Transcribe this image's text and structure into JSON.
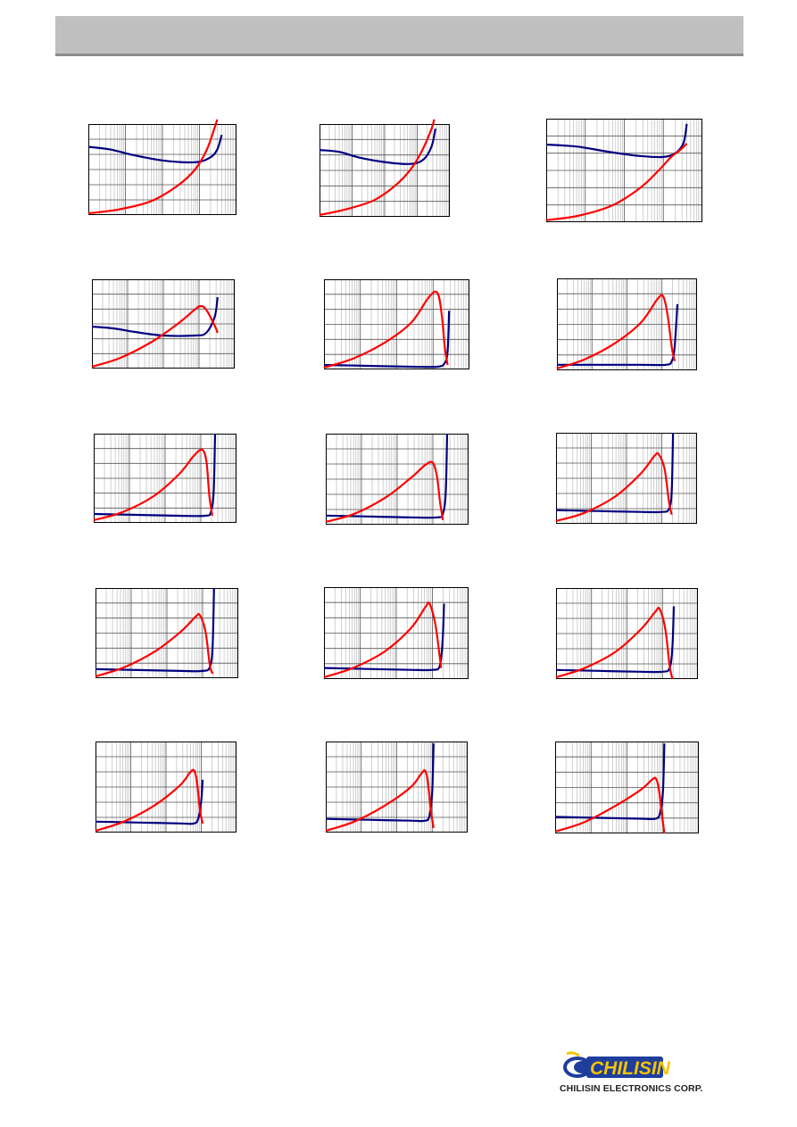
{
  "colors": {
    "header": "#c0c0c0",
    "impedance_curve": "#000080",
    "q_curve": "#ff0000",
    "frame": "#000000",
    "grid_major": "#555555",
    "grid_minor": "#b0b0b0"
  },
  "charts": [
    {
      "id": "r1c1",
      "blue": [
        [
          0,
          0.75
        ],
        [
          0.15,
          0.72
        ],
        [
          0.3,
          0.66
        ],
        [
          0.5,
          0.6
        ],
        [
          0.72,
          0.58
        ],
        [
          0.82,
          0.63
        ],
        [
          0.87,
          0.72
        ],
        [
          0.9,
          0.88
        ]
      ],
      "red": [
        [
          0,
          0.02
        ],
        [
          0.2,
          0.06
        ],
        [
          0.42,
          0.15
        ],
        [
          0.6,
          0.32
        ],
        [
          0.72,
          0.5
        ],
        [
          0.8,
          0.72
        ],
        [
          0.85,
          0.95
        ],
        [
          0.87,
          1.05
        ]
      ]
    },
    {
      "id": "r1c2",
      "blue": [
        [
          0,
          0.72
        ],
        [
          0.15,
          0.7
        ],
        [
          0.3,
          0.64
        ],
        [
          0.5,
          0.59
        ],
        [
          0.7,
          0.57
        ],
        [
          0.8,
          0.62
        ],
        [
          0.86,
          0.76
        ],
        [
          0.89,
          0.95
        ]
      ],
      "red": [
        [
          0,
          0.02
        ],
        [
          0.2,
          0.08
        ],
        [
          0.42,
          0.18
        ],
        [
          0.6,
          0.36
        ],
        [
          0.72,
          0.55
        ],
        [
          0.8,
          0.75
        ],
        [
          0.86,
          0.95
        ],
        [
          0.88,
          1.05
        ]
      ]
    },
    {
      "id": "r1c3",
      "blue": [
        [
          0,
          0.75
        ],
        [
          0.2,
          0.73
        ],
        [
          0.4,
          0.68
        ],
        [
          0.6,
          0.64
        ],
        [
          0.75,
          0.63
        ],
        [
          0.83,
          0.67
        ],
        [
          0.88,
          0.77
        ],
        [
          0.9,
          0.95
        ]
      ],
      "red": [
        [
          0,
          0.02
        ],
        [
          0.2,
          0.06
        ],
        [
          0.42,
          0.16
        ],
        [
          0.6,
          0.33
        ],
        [
          0.72,
          0.5
        ],
        [
          0.8,
          0.63
        ],
        [
          0.86,
          0.7
        ],
        [
          0.9,
          0.76
        ]
      ]
    },
    {
      "id": "r2c1",
      "blue": [
        [
          0,
          0.47
        ],
        [
          0.15,
          0.45
        ],
        [
          0.3,
          0.41
        ],
        [
          0.5,
          0.37
        ],
        [
          0.72,
          0.37
        ],
        [
          0.8,
          0.4
        ],
        [
          0.86,
          0.58
        ],
        [
          0.88,
          0.8
        ]
      ],
      "red": [
        [
          0,
          0.02
        ],
        [
          0.2,
          0.12
        ],
        [
          0.42,
          0.3
        ],
        [
          0.6,
          0.5
        ],
        [
          0.72,
          0.66
        ],
        [
          0.76,
          0.7
        ],
        [
          0.8,
          0.66
        ],
        [
          0.86,
          0.48
        ],
        [
          0.88,
          0.4
        ]
      ]
    },
    {
      "id": "r2c2",
      "blue": [
        [
          0,
          0.05
        ],
        [
          0.3,
          0.04
        ],
        [
          0.6,
          0.03
        ],
        [
          0.78,
          0.03
        ],
        [
          0.83,
          0.07
        ],
        [
          0.85,
          0.2
        ],
        [
          0.86,
          0.65
        ]
      ],
      "red": [
        [
          0,
          0.02
        ],
        [
          0.2,
          0.12
        ],
        [
          0.42,
          0.3
        ],
        [
          0.6,
          0.52
        ],
        [
          0.72,
          0.8
        ],
        [
          0.78,
          0.85
        ],
        [
          0.81,
          0.6
        ],
        [
          0.83,
          0.25
        ],
        [
          0.85,
          0.05
        ]
      ]
    },
    {
      "id": "r2c3",
      "blue": [
        [
          0,
          0.06
        ],
        [
          0.3,
          0.06
        ],
        [
          0.6,
          0.06
        ],
        [
          0.78,
          0.06
        ],
        [
          0.82,
          0.1
        ],
        [
          0.84,
          0.25
        ],
        [
          0.86,
          0.72
        ]
      ],
      "red": [
        [
          0,
          0.02
        ],
        [
          0.2,
          0.12
        ],
        [
          0.42,
          0.3
        ],
        [
          0.6,
          0.52
        ],
        [
          0.72,
          0.78
        ],
        [
          0.76,
          0.8
        ],
        [
          0.79,
          0.6
        ],
        [
          0.82,
          0.25
        ],
        [
          0.84,
          0.1
        ]
      ]
    },
    {
      "id": "r3c1",
      "blue": [
        [
          0,
          0.1
        ],
        [
          0.3,
          0.09
        ],
        [
          0.6,
          0.08
        ],
        [
          0.78,
          0.08
        ],
        [
          0.82,
          0.12
        ],
        [
          0.84,
          0.35
        ],
        [
          0.85,
          1.0
        ]
      ],
      "red": [
        [
          0,
          0.03
        ],
        [
          0.2,
          0.12
        ],
        [
          0.42,
          0.3
        ],
        [
          0.6,
          0.55
        ],
        [
          0.7,
          0.75
        ],
        [
          0.76,
          0.82
        ],
        [
          0.79,
          0.68
        ],
        [
          0.81,
          0.3
        ],
        [
          0.83,
          0.08
        ]
      ]
    },
    {
      "id": "r3c2",
      "blue": [
        [
          0,
          0.1
        ],
        [
          0.3,
          0.09
        ],
        [
          0.6,
          0.08
        ],
        [
          0.78,
          0.08
        ],
        [
          0.82,
          0.12
        ],
        [
          0.84,
          0.35
        ],
        [
          0.85,
          1.0
        ]
      ],
      "red": [
        [
          0,
          0.03
        ],
        [
          0.2,
          0.12
        ],
        [
          0.42,
          0.3
        ],
        [
          0.6,
          0.52
        ],
        [
          0.7,
          0.66
        ],
        [
          0.75,
          0.68
        ],
        [
          0.78,
          0.52
        ],
        [
          0.8,
          0.25
        ],
        [
          0.82,
          0.05
        ]
      ]
    },
    {
      "id": "r3c3",
      "blue": [
        [
          0,
          0.15
        ],
        [
          0.3,
          0.14
        ],
        [
          0.6,
          0.13
        ],
        [
          0.75,
          0.13
        ],
        [
          0.8,
          0.16
        ],
        [
          0.82,
          0.35
        ],
        [
          0.83,
          1.0
        ]
      ],
      "red": [
        [
          0,
          0.03
        ],
        [
          0.2,
          0.12
        ],
        [
          0.42,
          0.3
        ],
        [
          0.6,
          0.55
        ],
        [
          0.7,
          0.75
        ],
        [
          0.73,
          0.76
        ],
        [
          0.77,
          0.6
        ],
        [
          0.8,
          0.25
        ],
        [
          0.82,
          0.1
        ]
      ]
    },
    {
      "id": "r4c1",
      "blue": [
        [
          0,
          0.1
        ],
        [
          0.3,
          0.09
        ],
        [
          0.6,
          0.08
        ],
        [
          0.75,
          0.08
        ],
        [
          0.8,
          0.12
        ],
        [
          0.82,
          0.35
        ],
        [
          0.83,
          1.0
        ]
      ],
      "red": [
        [
          0,
          0.02
        ],
        [
          0.2,
          0.12
        ],
        [
          0.42,
          0.3
        ],
        [
          0.6,
          0.52
        ],
        [
          0.7,
          0.68
        ],
        [
          0.73,
          0.7
        ],
        [
          0.77,
          0.52
        ],
        [
          0.8,
          0.15
        ],
        [
          0.82,
          0.05
        ]
      ]
    },
    {
      "id": "r4c2",
      "blue": [
        [
          0,
          0.12
        ],
        [
          0.3,
          0.11
        ],
        [
          0.6,
          0.1
        ],
        [
          0.75,
          0.1
        ],
        [
          0.8,
          0.14
        ],
        [
          0.82,
          0.4
        ],
        [
          0.83,
          0.82
        ]
      ],
      "red": [
        [
          0,
          0.02
        ],
        [
          0.2,
          0.12
        ],
        [
          0.42,
          0.3
        ],
        [
          0.6,
          0.55
        ],
        [
          0.7,
          0.78
        ],
        [
          0.73,
          0.82
        ],
        [
          0.77,
          0.6
        ],
        [
          0.8,
          0.25
        ],
        [
          0.81,
          0.12
        ]
      ]
    },
    {
      "id": "r4c3",
      "blue": [
        [
          0,
          0.1
        ],
        [
          0.3,
          0.09
        ],
        [
          0.6,
          0.08
        ],
        [
          0.75,
          0.08
        ],
        [
          0.8,
          0.12
        ],
        [
          0.82,
          0.35
        ],
        [
          0.83,
          0.8
        ]
      ],
      "red": [
        [
          0,
          0.02
        ],
        [
          0.2,
          0.12
        ],
        [
          0.42,
          0.3
        ],
        [
          0.6,
          0.55
        ],
        [
          0.7,
          0.74
        ],
        [
          0.73,
          0.77
        ],
        [
          0.77,
          0.55
        ],
        [
          0.8,
          0.15
        ],
        [
          0.82,
          0.0
        ]
      ]
    },
    {
      "id": "r5c1",
      "blue": [
        [
          0,
          0.12
        ],
        [
          0.3,
          0.11
        ],
        [
          0.6,
          0.1
        ],
        [
          0.7,
          0.1
        ],
        [
          0.73,
          0.16
        ],
        [
          0.75,
          0.35
        ],
        [
          0.76,
          0.58
        ]
      ],
      "red": [
        [
          0,
          0.02
        ],
        [
          0.2,
          0.12
        ],
        [
          0.42,
          0.3
        ],
        [
          0.6,
          0.52
        ],
        [
          0.67,
          0.66
        ],
        [
          0.7,
          0.68
        ],
        [
          0.72,
          0.55
        ],
        [
          0.74,
          0.25
        ],
        [
          0.76,
          0.1
        ]
      ]
    },
    {
      "id": "r5c2",
      "blue": [
        [
          0,
          0.15
        ],
        [
          0.3,
          0.14
        ],
        [
          0.6,
          0.13
        ],
        [
          0.7,
          0.13
        ],
        [
          0.73,
          0.18
        ],
        [
          0.75,
          0.45
        ],
        [
          0.76,
          0.98
        ]
      ],
      "red": [
        [
          0,
          0.02
        ],
        [
          0.2,
          0.12
        ],
        [
          0.42,
          0.3
        ],
        [
          0.6,
          0.5
        ],
        [
          0.67,
          0.64
        ],
        [
          0.7,
          0.68
        ],
        [
          0.72,
          0.55
        ],
        [
          0.74,
          0.25
        ],
        [
          0.76,
          0.05
        ]
      ]
    },
    {
      "id": "r5c3",
      "blue": [
        [
          0,
          0.18
        ],
        [
          0.3,
          0.17
        ],
        [
          0.6,
          0.16
        ],
        [
          0.7,
          0.16
        ],
        [
          0.73,
          0.22
        ],
        [
          0.75,
          0.45
        ],
        [
          0.76,
          0.98
        ]
      ],
      "red": [
        [
          0,
          0.02
        ],
        [
          0.2,
          0.12
        ],
        [
          0.42,
          0.3
        ],
        [
          0.6,
          0.48
        ],
        [
          0.67,
          0.58
        ],
        [
          0.7,
          0.6
        ],
        [
          0.72,
          0.5
        ],
        [
          0.74,
          0.25
        ],
        [
          0.76,
          0.0
        ]
      ]
    }
  ],
  "footer": {
    "logo_text": "CHILISIN",
    "company_name": "CHILISIN ELECTRONICS CORP."
  }
}
